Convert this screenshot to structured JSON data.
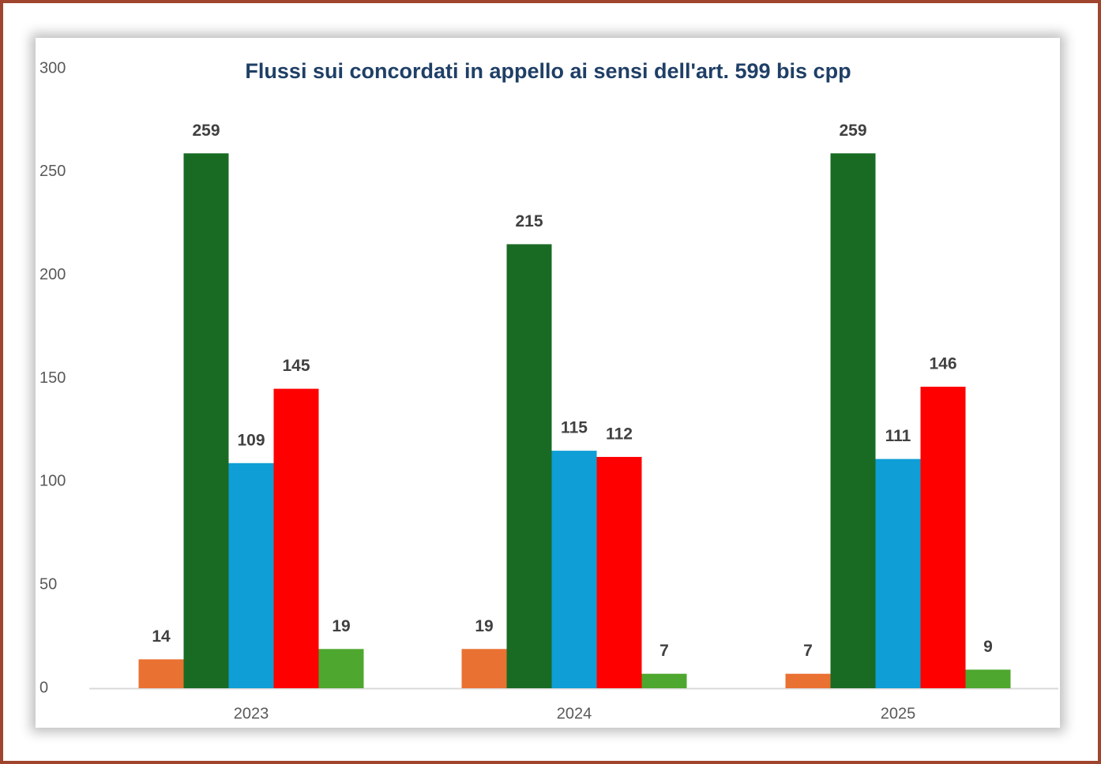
{
  "chart_data": {
    "type": "bar",
    "title": "Flussi sui concordati in appello ai sensi dell'art. 599 bis cpp",
    "categories": [
      "2023",
      "2024",
      "2025"
    ],
    "series": [
      {
        "color": "#e97132",
        "values": [
          14,
          19,
          7
        ]
      },
      {
        "color": "#196b24",
        "values": [
          259,
          215,
          259
        ]
      },
      {
        "color": "#0f9ed5",
        "values": [
          109,
          115,
          111
        ]
      },
      {
        "color": "#ff0000",
        "values": [
          145,
          112,
          146
        ]
      },
      {
        "color": "#4ea72e",
        "values": [
          19,
          7,
          9
        ]
      }
    ],
    "ylim": [
      0,
      300
    ],
    "yticks": [
      0,
      50,
      100,
      150,
      200,
      250,
      300
    ],
    "grid": false
  }
}
